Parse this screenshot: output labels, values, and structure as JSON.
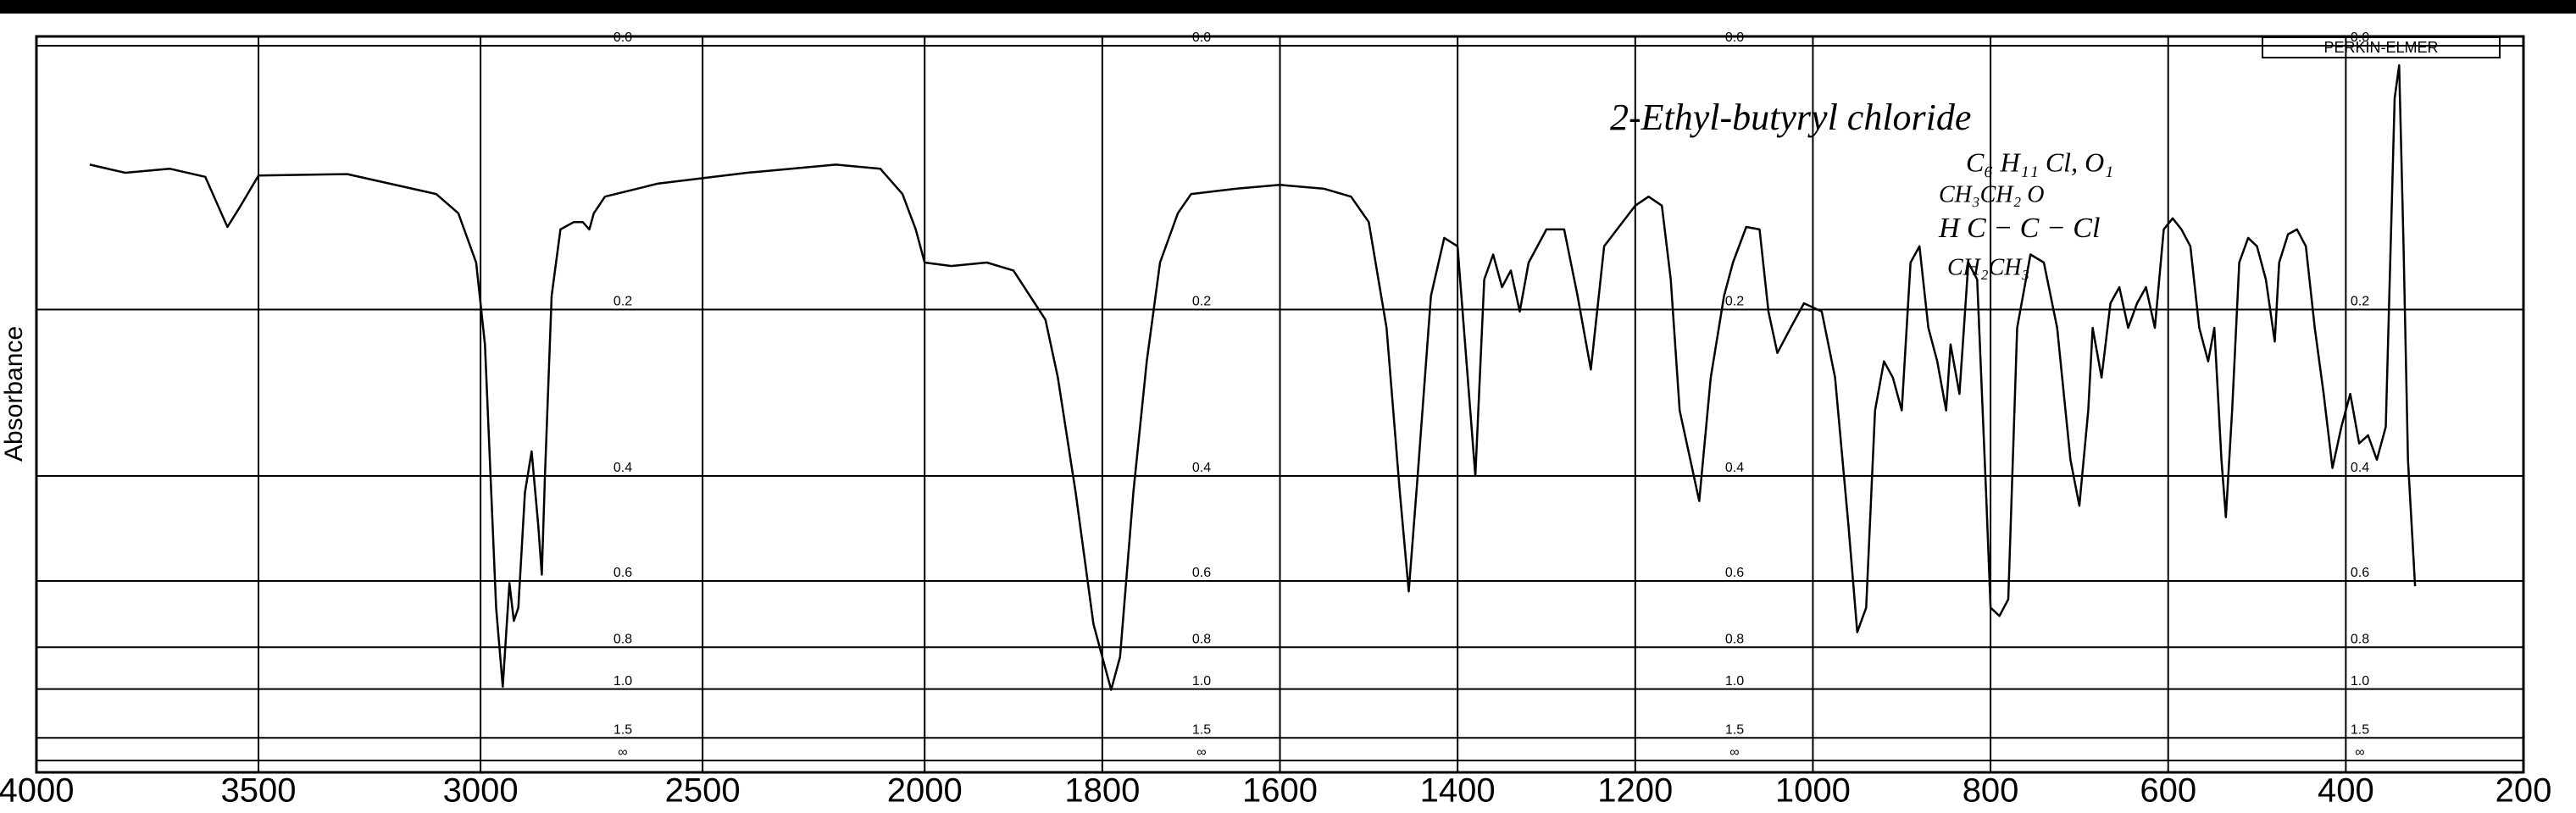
{
  "chart_data": {
    "type": "line",
    "ylabel": "Absorbance",
    "brand": "PERKIN-ELMER",
    "annotations": [
      "2-Ethyl-butyryl chloride",
      "C₆ H₁₁ Cl, O₁",
      "CH₃CH₂ O",
      "H C − C − Cl",
      "CH₂CH₃"
    ],
    "xlim": [
      4000,
      200
    ],
    "xscale": {
      "breaks": [
        2000
      ],
      "density": [
        1,
        2
      ]
    },
    "xticks": [
      4000,
      3500,
      3000,
      2500,
      2000,
      1800,
      1600,
      1400,
      1200,
      1000,
      800,
      600,
      400,
      200
    ],
    "ylim": [
      0,
      "Infinity"
    ],
    "yscale": "transmittance",
    "yticks": [
      {
        "value": 0,
        "label": "0.0"
      },
      0.2,
      0.4,
      0.6,
      0.8,
      {
        "value": 1,
        "label": "1.0"
      },
      1.5,
      {
        "value": "Infinity",
        "label": "∞"
      }
    ],
    "grid": true,
    "color": "#000000",
    "x": [
      3880,
      3800,
      3700,
      3620,
      3570,
      3540,
      3500,
      3300,
      3100,
      3050,
      3010,
      2990,
      2965,
      2950,
      2935,
      2925,
      2915,
      2900,
      2885,
      2870,
      2862,
      2855,
      2840,
      2820,
      2790,
      2770,
      2755,
      2745,
      2720,
      2600,
      2400,
      2200,
      2100,
      2050,
      2020,
      2000,
      1970,
      1930,
      1900,
      1864,
      1850,
      1830,
      1810,
      1790,
      1780,
      1765,
      1750,
      1735,
      1715,
      1700,
      1650,
      1600,
      1550,
      1520,
      1500,
      1480,
      1465,
      1455,
      1445,
      1430,
      1415,
      1400,
      1390,
      1380,
      1370,
      1360,
      1350,
      1340,
      1330,
      1320,
      1300,
      1280,
      1265,
      1250,
      1235,
      1200,
      1185,
      1170,
      1160,
      1150,
      1128,
      1115,
      1100,
      1090,
      1075,
      1060,
      1050,
      1040,
      1025,
      1010,
      990,
      975,
      960,
      950,
      940,
      930,
      920,
      910,
      900,
      890,
      880,
      870,
      860,
      850,
      845,
      835,
      825,
      815,
      805,
      800,
      790,
      780,
      770,
      755,
      740,
      725,
      710,
      700,
      690,
      685,
      675,
      665,
      655,
      645,
      635,
      625,
      615,
      605,
      595,
      585,
      575,
      565,
      555,
      548,
      540,
      535,
      528,
      520,
      510,
      500,
      490,
      480,
      475,
      465,
      455,
      445,
      435,
      425,
      415,
      405,
      395,
      385,
      375,
      365,
      355,
      345,
      340,
      335,
      330,
      322
    ],
    "values": [
      0.079,
      0.085,
      0.082,
      0.088,
      0.127,
      0.11,
      0.087,
      0.086,
      0.101,
      0.116,
      0.157,
      0.235,
      0.67,
      0.986,
      0.605,
      0.709,
      0.67,
      0.426,
      0.364,
      0.483,
      0.585,
      0.4,
      0.187,
      0.129,
      0.123,
      0.123,
      0.129,
      0.116,
      0.103,
      0.093,
      0.085,
      0.079,
      0.082,
      0.101,
      0.129,
      0.157,
      0.16,
      0.157,
      0.164,
      0.21,
      0.271,
      0.426,
      0.719,
      1.005,
      0.839,
      0.426,
      0.253,
      0.157,
      0.116,
      0.101,
      0.097,
      0.094,
      0.097,
      0.103,
      0.123,
      0.218,
      0.426,
      0.626,
      0.4,
      0.187,
      0.136,
      0.143,
      0.253,
      0.4,
      0.172,
      0.15,
      0.179,
      0.164,
      0.202,
      0.157,
      0.129,
      0.129,
      0.187,
      0.262,
      0.143,
      0.11,
      0.103,
      0.11,
      0.172,
      0.31,
      0.44,
      0.271,
      0.187,
      0.157,
      0.127,
      0.129,
      0.202,
      0.244,
      0.218,
      0.194,
      0.202,
      0.271,
      0.483,
      0.746,
      0.67,
      0.31,
      0.253,
      0.271,
      0.31,
      0.157,
      0.143,
      0.218,
      0.253,
      0.31,
      0.235,
      0.29,
      0.157,
      0.172,
      0.426,
      0.67,
      0.694,
      0.647,
      0.218,
      0.15,
      0.157,
      0.218,
      0.376,
      0.448,
      0.31,
      0.218,
      0.271,
      0.194,
      0.179,
      0.218,
      0.194,
      0.179,
      0.218,
      0.129,
      0.12,
      0.129,
      0.143,
      0.218,
      0.253,
      0.218,
      0.376,
      0.468,
      0.31,
      0.157,
      0.136,
      0.143,
      0.172,
      0.232,
      0.157,
      0.133,
      0.129,
      0.143,
      0.218,
      0.29,
      0.388,
      0.331,
      0.29,
      0.353,
      0.342,
      0.376,
      0.331,
      0.033,
      0.012,
      0.143,
      0.376,
      0.613
    ]
  }
}
